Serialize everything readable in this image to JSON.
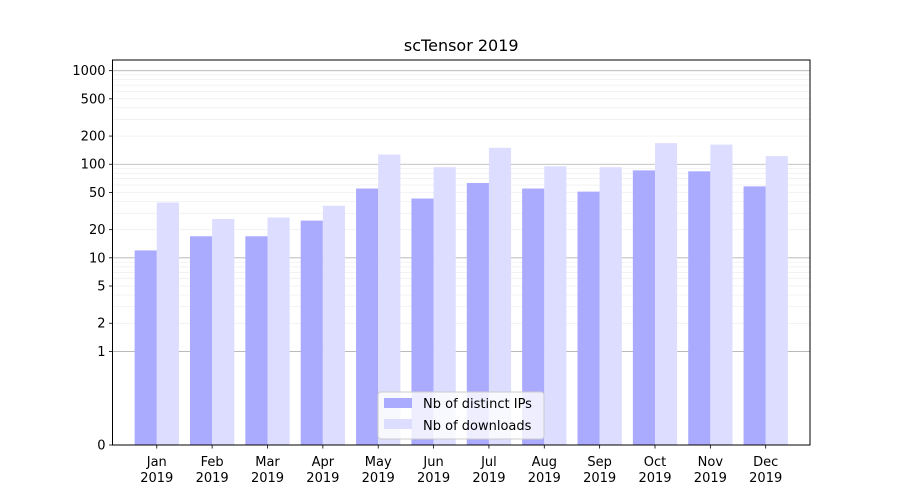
{
  "chart_data": {
    "type": "bar",
    "title": "scTensor 2019",
    "xlabel": "",
    "ylabel": "",
    "y_scale": "symlog",
    "ylim": [
      0,
      1300
    ],
    "y_ticks": [
      0,
      1,
      2,
      5,
      10,
      20,
      50,
      100,
      200,
      500,
      1000
    ],
    "grid": true,
    "legend_position": "bottom-center",
    "categories": [
      "Jan\n2019",
      "Feb\n2019",
      "Mar\n2019",
      "Apr\n2019",
      "May\n2019",
      "Jun\n2019",
      "Jul\n2019",
      "Aug\n2019",
      "Sep\n2019",
      "Oct\n2019",
      "Nov\n2019",
      "Dec\n2019"
    ],
    "series": [
      {
        "name": "Nb of distinct IPs",
        "color": "#aaaaff",
        "values": [
          12,
          17,
          17,
          25,
          55,
          43,
          63,
          55,
          51,
          86,
          84,
          58
        ]
      },
      {
        "name": "Nb of downloads",
        "color": "#ddddff",
        "values": [
          39,
          26,
          27,
          36,
          127,
          93,
          150,
          95,
          93,
          168,
          162,
          122
        ]
      }
    ]
  }
}
